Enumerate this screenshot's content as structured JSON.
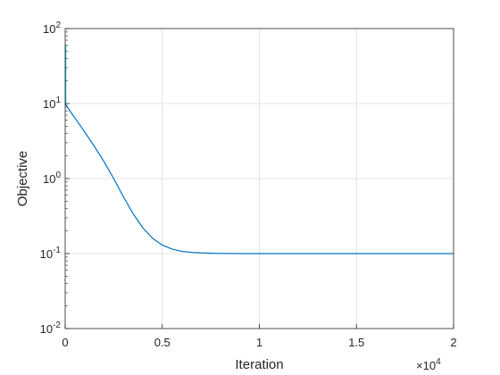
{
  "chart_data": {
    "type": "line",
    "xlabel": "Iteration",
    "ylabel": "Objective",
    "x_multiplier": "×10",
    "x_multiplier_exp": "4",
    "xlim": [
      0,
      20000
    ],
    "ylim": [
      0.01,
      100
    ],
    "yscale": "log",
    "grid": true,
    "x_ticks": [
      {
        "value": 0,
        "label": "0"
      },
      {
        "value": 5000,
        "label": "0.5"
      },
      {
        "value": 10000,
        "label": "1"
      },
      {
        "value": 15000,
        "label": "1.5"
      },
      {
        "value": 20000,
        "label": "2"
      }
    ],
    "y_ticks": [
      {
        "value": 0.01,
        "base": "10",
        "exp": "-2"
      },
      {
        "value": 0.1,
        "base": "10",
        "exp": "-1"
      },
      {
        "value": 1,
        "base": "10",
        "exp": "0"
      },
      {
        "value": 10,
        "base": "10",
        "exp": "1"
      },
      {
        "value": 100,
        "base": "10",
        "exp": "2"
      }
    ],
    "series": [
      {
        "color": "#0072bd",
        "x": [
          0,
          300,
          800,
          1500,
          2000,
          2500,
          3000,
          3500,
          4000,
          4500,
          5000,
          5500,
          6000,
          6500,
          7000,
          7500,
          8000,
          9000,
          10000,
          12000,
          15000,
          20000
        ],
        "y": [
          10,
          7.6,
          5.0,
          2.7,
          1.68,
          1.0,
          0.57,
          0.34,
          0.22,
          0.16,
          0.13,
          0.115,
          0.107,
          0.104,
          0.102,
          0.101,
          0.1005,
          0.1,
          0.1,
          0.1,
          0.1,
          0.1
        ]
      }
    ],
    "early_spike": {
      "color": "#00bcd4",
      "x": [
        0,
        0,
        0
      ],
      "y": [
        60,
        22,
        10
      ]
    }
  }
}
